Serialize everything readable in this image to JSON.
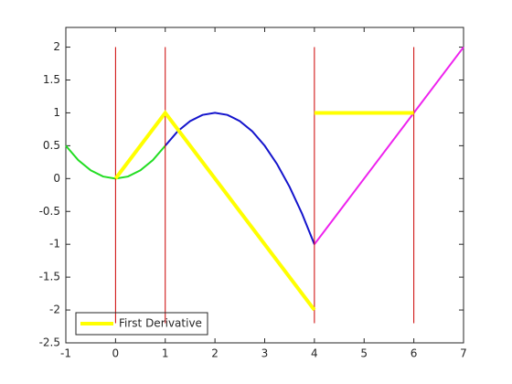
{
  "chart_data": {
    "type": "line",
    "xlim": [
      -1,
      7
    ],
    "xticks": [
      -1,
      0,
      1,
      2,
      3,
      4,
      5,
      6,
      7
    ],
    "ylim": [
      -2.5,
      2.3
    ],
    "yticks": [
      -2.5,
      -2,
      -1.5,
      -1,
      -0.5,
      0,
      0.5,
      1,
      1.5,
      2
    ],
    "legend": "lower-left",
    "series": [
      {
        "color": "#22dd22",
        "width": 2,
        "x": [
          -1,
          -0.75,
          -0.5,
          -0.25,
          0,
          0.25,
          0.5,
          0.75,
          1
        ],
        "values": [
          0.5,
          0.28125,
          0.125,
          0.03125,
          0,
          0.03125,
          0.125,
          0.28125,
          0.5
        ]
      },
      {
        "color": "#1414cc",
        "width": 2,
        "x": [
          1,
          1.25,
          1.5,
          1.75,
          2,
          2.25,
          2.5,
          2.75,
          3,
          3.25,
          3.5,
          3.75,
          4
        ],
        "values": [
          0.5,
          0.71875,
          0.875,
          0.96875,
          1,
          0.96875,
          0.875,
          0.71875,
          0.5,
          0.21875,
          -0.125,
          -0.53125,
          -1
        ]
      },
      {
        "color": "#ee22ee",
        "width": 2,
        "x": [
          4,
          7
        ],
        "values": [
          -1,
          2
        ]
      },
      {
        "color": "#cc0000",
        "width": 1,
        "x": [
          0,
          0
        ],
        "values": [
          -2.2,
          2
        ]
      },
      {
        "color": "#cc0000",
        "width": 1,
        "x": [
          1,
          1
        ],
        "values": [
          -2.2,
          2
        ]
      },
      {
        "color": "#cc0000",
        "width": 1,
        "x": [
          4,
          4
        ],
        "values": [
          -2.2,
          2
        ]
      },
      {
        "color": "#cc0000",
        "width": 1,
        "x": [
          6,
          6
        ],
        "values": [
          -2.2,
          2
        ]
      },
      {
        "name": "First Derivative",
        "color": "#ffff00",
        "width": 4,
        "x": [
          0,
          1,
          4,
          4,
          4,
          6
        ],
        "values": [
          0,
          1,
          -2,
          null,
          1,
          1
        ]
      }
    ]
  }
}
